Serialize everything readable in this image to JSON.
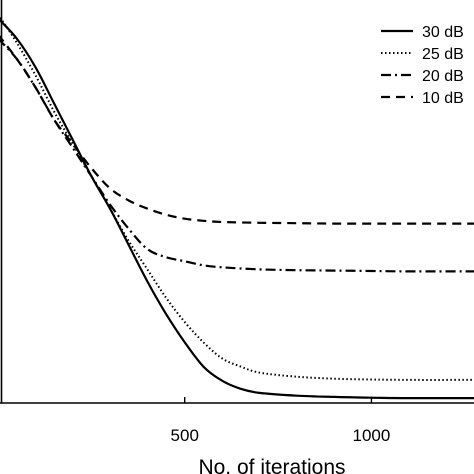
{
  "chart_data": {
    "type": "line",
    "title": "",
    "xlabel": "No. of iterations",
    "ylabel": "",
    "xlim": [
      0,
      1280
    ],
    "ylim": [
      0,
      1
    ],
    "x_ticks": [
      500,
      1000
    ],
    "x_tick_labels": [
      "500",
      "1000"
    ],
    "grid": false,
    "legend_position": "top-right",
    "series": [
      {
        "name": "30 dB",
        "style": "solid",
        "points": [
          [
            0,
            0.95
          ],
          [
            50,
            0.9
          ],
          [
            100,
            0.83
          ],
          [
            150,
            0.74
          ],
          [
            200,
            0.65
          ],
          [
            250,
            0.56
          ],
          [
            300,
            0.48
          ],
          [
            350,
            0.39
          ],
          [
            400,
            0.3
          ],
          [
            450,
            0.22
          ],
          [
            500,
            0.15
          ],
          [
            550,
            0.09
          ],
          [
            600,
            0.055
          ],
          [
            650,
            0.035
          ],
          [
            700,
            0.025
          ],
          [
            800,
            0.018
          ],
          [
            900,
            0.015
          ],
          [
            1000,
            0.013
          ],
          [
            1100,
            0.012
          ],
          [
            1280,
            0.012
          ]
        ]
      },
      {
        "name": "25 dB",
        "style": "dotted",
        "points": [
          [
            0,
            0.96
          ],
          [
            50,
            0.89
          ],
          [
            100,
            0.81
          ],
          [
            150,
            0.72
          ],
          [
            200,
            0.64
          ],
          [
            250,
            0.56
          ],
          [
            300,
            0.48
          ],
          [
            350,
            0.4
          ],
          [
            400,
            0.33
          ],
          [
            450,
            0.26
          ],
          [
            500,
            0.2
          ],
          [
            550,
            0.15
          ],
          [
            600,
            0.11
          ],
          [
            650,
            0.09
          ],
          [
            700,
            0.075
          ],
          [
            800,
            0.065
          ],
          [
            900,
            0.06
          ],
          [
            1000,
            0.058
          ],
          [
            1100,
            0.057
          ],
          [
            1280,
            0.057
          ]
        ]
      },
      {
        "name": "20 dB",
        "style": "dashdot",
        "points": [
          [
            0,
            0.9
          ],
          [
            50,
            0.85
          ],
          [
            100,
            0.78
          ],
          [
            150,
            0.7
          ],
          [
            200,
            0.63
          ],
          [
            250,
            0.56
          ],
          [
            300,
            0.49
          ],
          [
            350,
            0.43
          ],
          [
            400,
            0.38
          ],
          [
            450,
            0.36
          ],
          [
            500,
            0.35
          ],
          [
            550,
            0.34
          ],
          [
            600,
            0.335
          ],
          [
            700,
            0.33
          ],
          [
            800,
            0.328
          ],
          [
            900,
            0.327
          ],
          [
            1000,
            0.326
          ],
          [
            1100,
            0.325
          ],
          [
            1280,
            0.325
          ]
        ]
      },
      {
        "name": "10 dB",
        "style": "dashed",
        "points": [
          [
            0,
            0.91
          ],
          [
            50,
            0.85
          ],
          [
            100,
            0.78
          ],
          [
            150,
            0.7
          ],
          [
            200,
            0.64
          ],
          [
            250,
            0.58
          ],
          [
            300,
            0.53
          ],
          [
            350,
            0.5
          ],
          [
            400,
            0.48
          ],
          [
            450,
            0.465
          ],
          [
            500,
            0.455
          ],
          [
            550,
            0.45
          ],
          [
            600,
            0.447
          ],
          [
            700,
            0.445
          ],
          [
            800,
            0.444
          ],
          [
            900,
            0.443
          ],
          [
            1000,
            0.443
          ],
          [
            1100,
            0.443
          ],
          [
            1280,
            0.443
          ]
        ]
      }
    ]
  }
}
